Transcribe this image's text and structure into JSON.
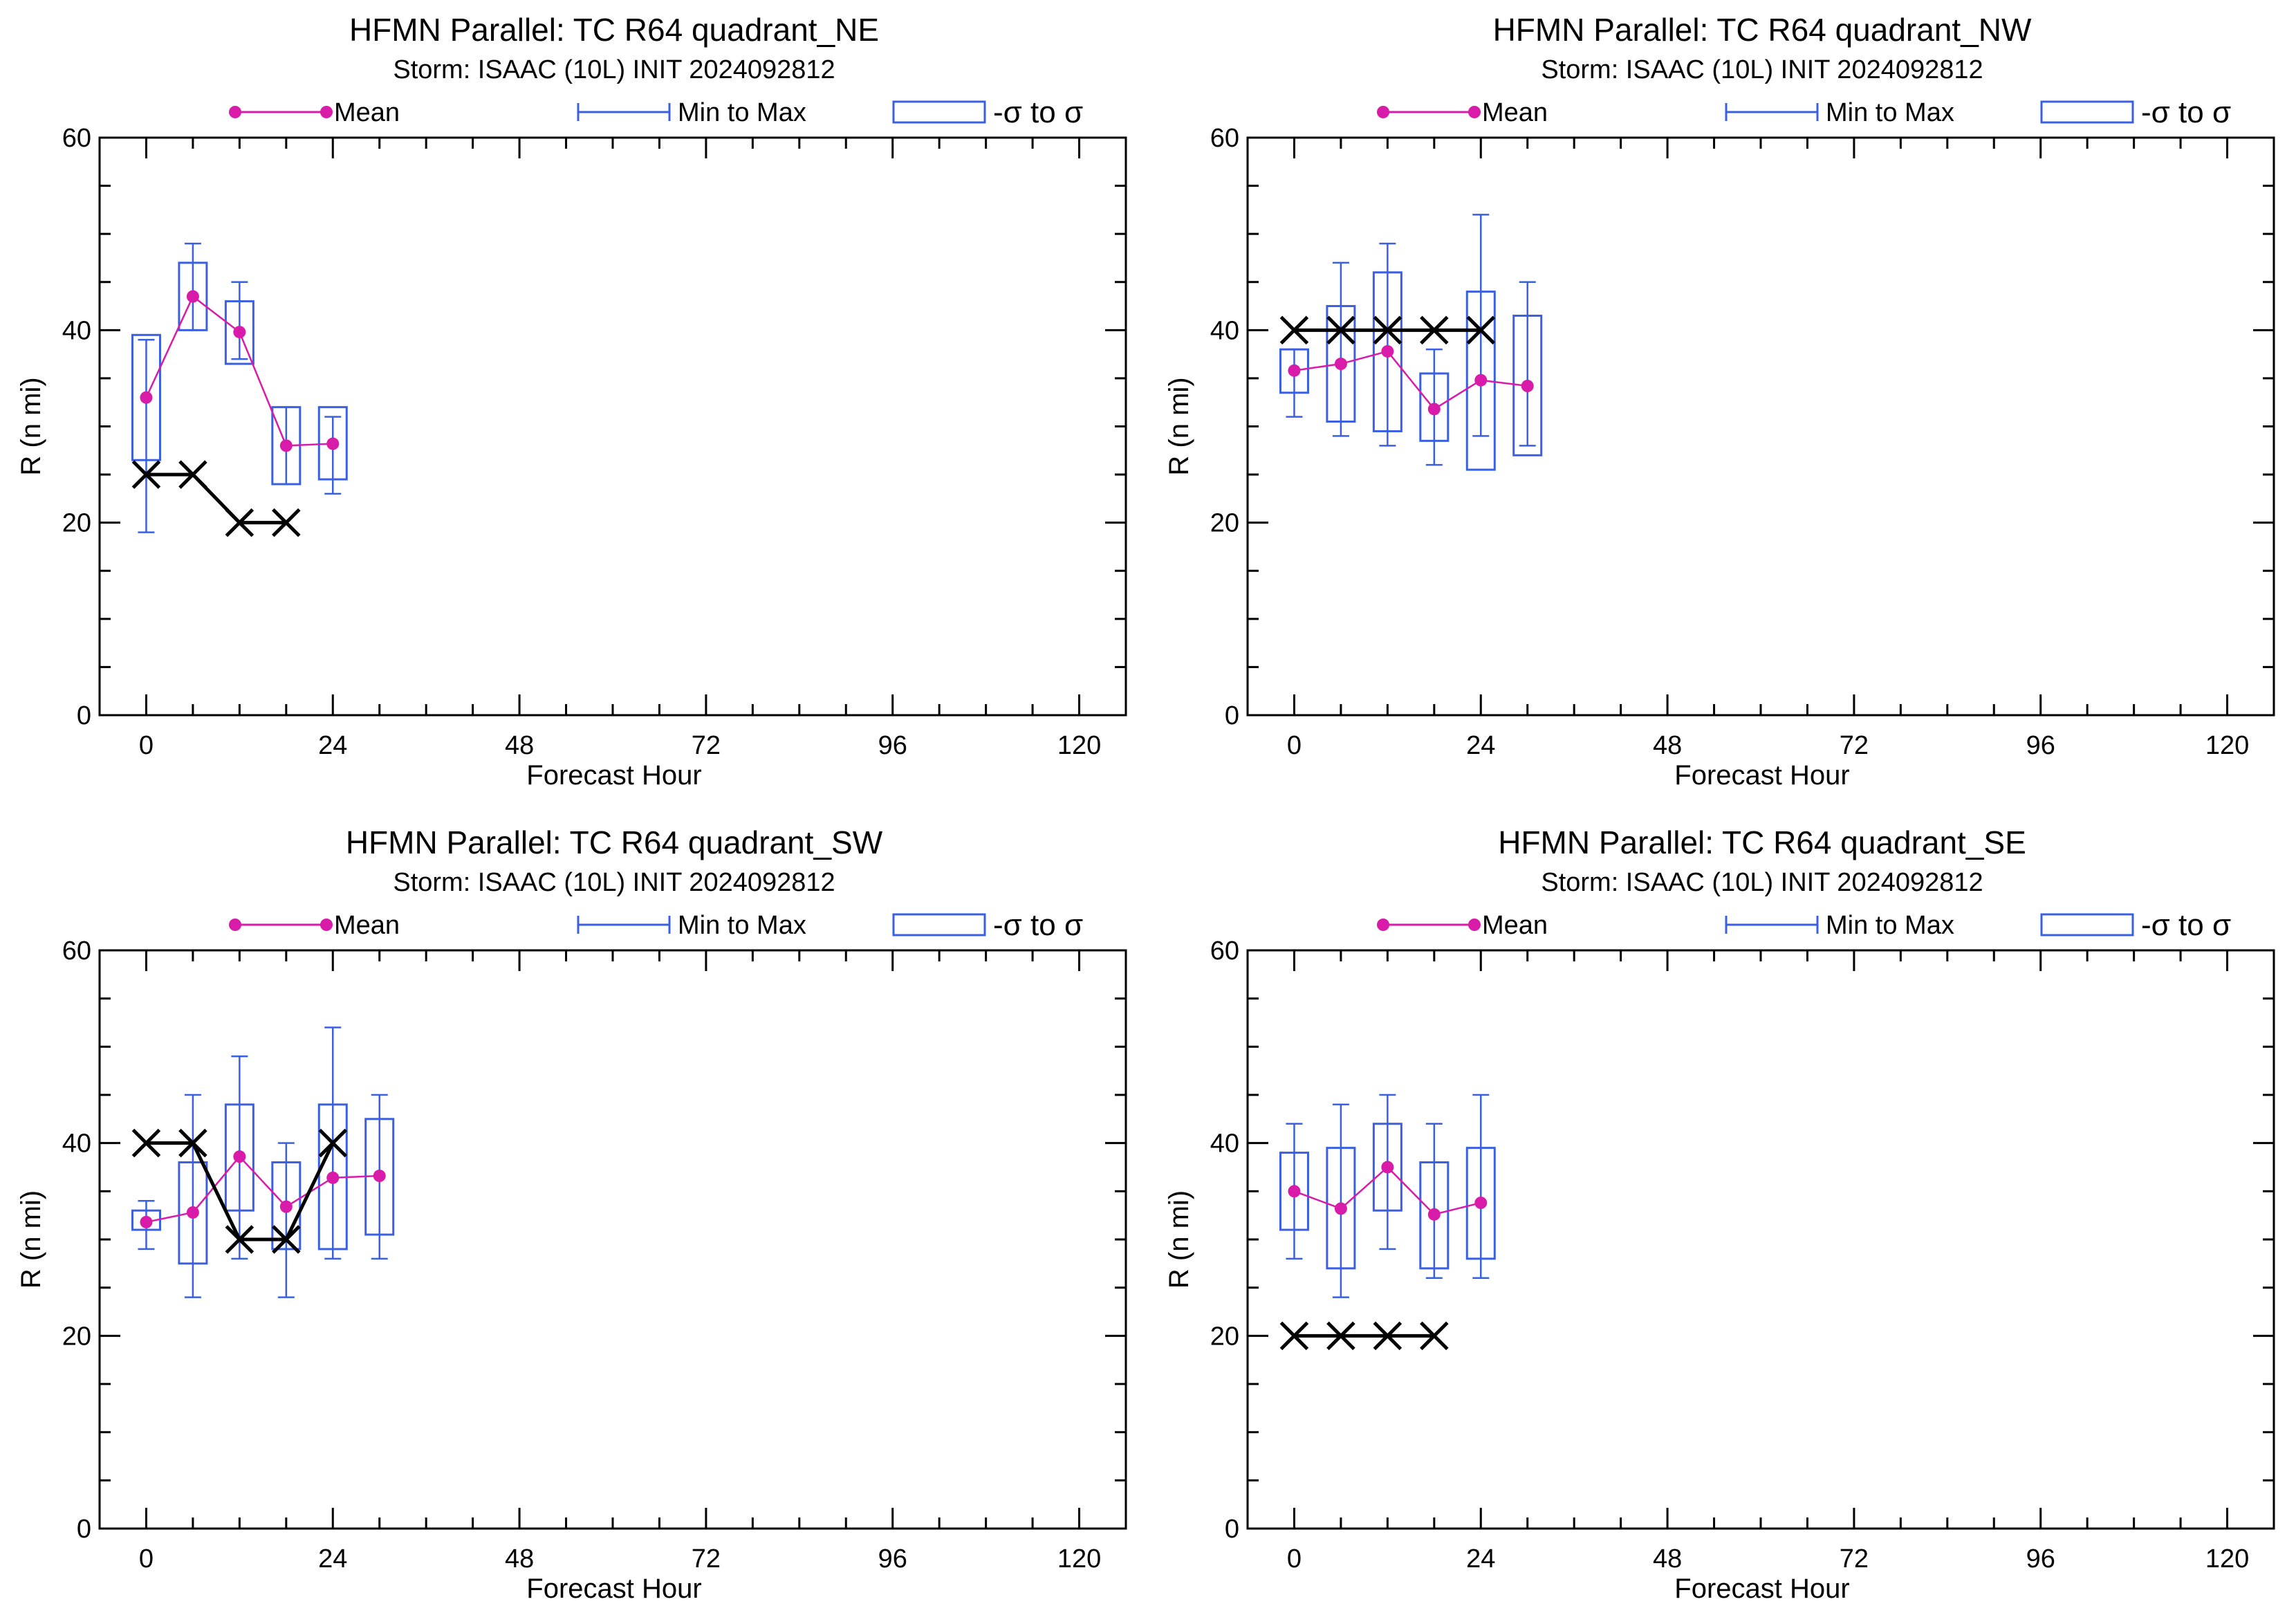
{
  "legend": {
    "mean_label": "Mean",
    "minmax_label": "Min to Max",
    "sigma_label": "-σ to σ"
  },
  "colors": {
    "mean": "#d81ba8",
    "spread": "#3a5fe0",
    "verification": "#000000",
    "axis": "#000000"
  },
  "chart_data": [
    {
      "type": "line",
      "title": "HFMN Parallel: TC  R64 quadrant_NE",
      "subtitle": "Storm: ISAAC (10L) INIT 2024092812",
      "xlabel": "Forecast Hour",
      "ylabel": "R (n mi)",
      "xlim": [
        -6,
        126
      ],
      "ylim": [
        0,
        60
      ],
      "xticks": [
        0,
        24,
        48,
        72,
        96,
        120
      ],
      "yticks": [
        0,
        20,
        40,
        60
      ],
      "stats": [
        {
          "x": 0,
          "mean": 33.0,
          "min": 19,
          "max": 39,
          "sd_lo": 26.5,
          "sd_hi": 39.5
        },
        {
          "x": 6,
          "mean": 43.5,
          "min": 40,
          "max": 49,
          "sd_lo": 40.0,
          "sd_hi": 47.0
        },
        {
          "x": 12,
          "mean": 39.8,
          "min": 37,
          "max": 45,
          "sd_lo": 36.5,
          "sd_hi": 43.0
        },
        {
          "x": 18,
          "mean": 28.0,
          "min": 24,
          "max": 32,
          "sd_lo": 24.0,
          "sd_hi": 32.0
        },
        {
          "x": 24,
          "mean": 28.2,
          "min": 23,
          "max": 31,
          "sd_lo": 24.5,
          "sd_hi": 32.0
        }
      ],
      "verification": [
        {
          "x": 0,
          "y": 25
        },
        {
          "x": 6,
          "y": 25
        },
        {
          "x": 12,
          "y": 20
        },
        {
          "x": 18,
          "y": 20
        }
      ]
    },
    {
      "type": "line",
      "title": "HFMN Parallel: TC  R64 quadrant_NW",
      "subtitle": "Storm: ISAAC (10L) INIT 2024092812",
      "xlabel": "Forecast Hour",
      "ylabel": "R (n mi)",
      "xlim": [
        -6,
        126
      ],
      "ylim": [
        0,
        60
      ],
      "xticks": [
        0,
        24,
        48,
        72,
        96,
        120
      ],
      "yticks": [
        0,
        20,
        40,
        60
      ],
      "stats": [
        {
          "x": 0,
          "mean": 35.8,
          "min": 31,
          "max": 38,
          "sd_lo": 33.5,
          "sd_hi": 38.0
        },
        {
          "x": 6,
          "mean": 36.5,
          "min": 29,
          "max": 47,
          "sd_lo": 30.5,
          "sd_hi": 42.5
        },
        {
          "x": 12,
          "mean": 37.8,
          "min": 28,
          "max": 49,
          "sd_lo": 29.5,
          "sd_hi": 46.0
        },
        {
          "x": 18,
          "mean": 31.8,
          "min": 26,
          "max": 38,
          "sd_lo": 28.5,
          "sd_hi": 35.5
        },
        {
          "x": 24,
          "mean": 34.8,
          "min": 29,
          "max": 52,
          "sd_lo": 25.5,
          "sd_hi": 44.0
        },
        {
          "x": 30,
          "mean": 34.2,
          "min": 28,
          "max": 45,
          "sd_lo": 27.0,
          "sd_hi": 41.5
        }
      ],
      "verification": [
        {
          "x": 0,
          "y": 40
        },
        {
          "x": 6,
          "y": 40
        },
        {
          "x": 12,
          "y": 40
        },
        {
          "x": 18,
          "y": 40
        },
        {
          "x": 24,
          "y": 40
        }
      ]
    },
    {
      "type": "line",
      "title": "HFMN Parallel: TC  R64 quadrant_SW",
      "subtitle": "Storm: ISAAC (10L) INIT 2024092812",
      "xlabel": "Forecast Hour",
      "ylabel": "R (n mi)",
      "xlim": [
        -6,
        126
      ],
      "ylim": [
        0,
        60
      ],
      "xticks": [
        0,
        24,
        48,
        72,
        96,
        120
      ],
      "yticks": [
        0,
        20,
        40,
        60
      ],
      "stats": [
        {
          "x": 0,
          "mean": 31.8,
          "min": 29,
          "max": 34,
          "sd_lo": 31.0,
          "sd_hi": 33.0
        },
        {
          "x": 6,
          "mean": 32.8,
          "min": 24,
          "max": 45,
          "sd_lo": 27.5,
          "sd_hi": 38.0
        },
        {
          "x": 12,
          "mean": 38.6,
          "min": 28,
          "max": 49,
          "sd_lo": 33.0,
          "sd_hi": 44.0
        },
        {
          "x": 18,
          "mean": 33.4,
          "min": 24,
          "max": 40,
          "sd_lo": 29.0,
          "sd_hi": 38.0
        },
        {
          "x": 24,
          "mean": 36.4,
          "min": 28,
          "max": 52,
          "sd_lo": 29.0,
          "sd_hi": 44.0
        },
        {
          "x": 30,
          "mean": 36.6,
          "min": 28,
          "max": 45,
          "sd_lo": 30.5,
          "sd_hi": 42.5
        }
      ],
      "verification": [
        {
          "x": 0,
          "y": 40
        },
        {
          "x": 6,
          "y": 40
        },
        {
          "x": 12,
          "y": 30
        },
        {
          "x": 18,
          "y": 30
        },
        {
          "x": 24,
          "y": 40
        }
      ]
    },
    {
      "type": "line",
      "title": "HFMN Parallel: TC  R64 quadrant_SE",
      "subtitle": "Storm: ISAAC (10L) INIT 2024092812",
      "xlabel": "Forecast Hour",
      "ylabel": "R (n mi)",
      "xlim": [
        -6,
        126
      ],
      "ylim": [
        0,
        60
      ],
      "xticks": [
        0,
        24,
        48,
        72,
        96,
        120
      ],
      "yticks": [
        0,
        20,
        40,
        60
      ],
      "stats": [
        {
          "x": 0,
          "mean": 35.0,
          "min": 28,
          "max": 42,
          "sd_lo": 31.0,
          "sd_hi": 39.0
        },
        {
          "x": 6,
          "mean": 33.2,
          "min": 24,
          "max": 44,
          "sd_lo": 27.0,
          "sd_hi": 39.5
        },
        {
          "x": 12,
          "mean": 37.5,
          "min": 29,
          "max": 45,
          "sd_lo": 33.0,
          "sd_hi": 42.0
        },
        {
          "x": 18,
          "mean": 32.6,
          "min": 26,
          "max": 42,
          "sd_lo": 27.0,
          "sd_hi": 38.0
        },
        {
          "x": 24,
          "mean": 33.8,
          "min": 26,
          "max": 45,
          "sd_lo": 28.0,
          "sd_hi": 39.5
        }
      ],
      "verification": [
        {
          "x": 0,
          "y": 20
        },
        {
          "x": 6,
          "y": 20
        },
        {
          "x": 12,
          "y": 20
        },
        {
          "x": 18,
          "y": 20
        }
      ]
    }
  ]
}
